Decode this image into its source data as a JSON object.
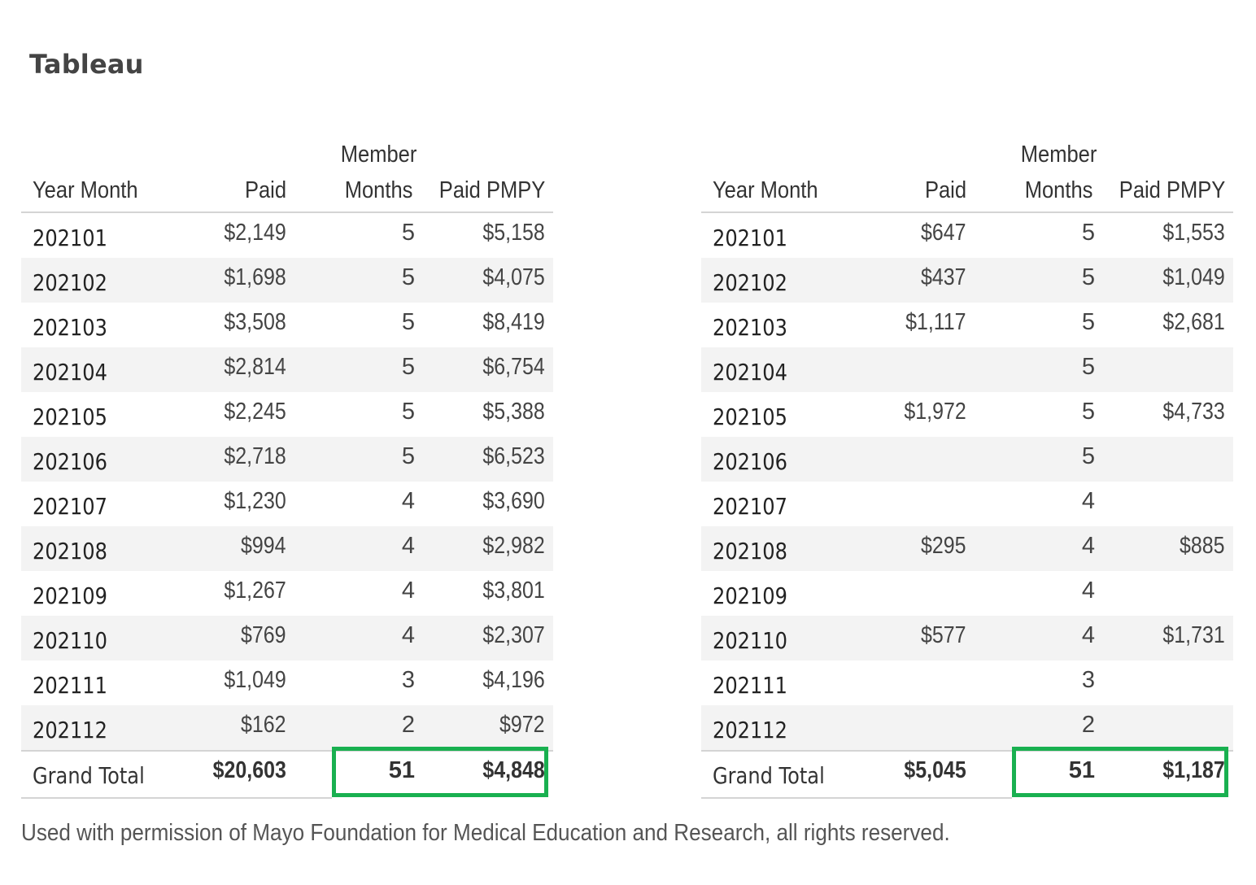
{
  "title": "Tableau",
  "columns": {
    "year_month": "Year Month",
    "paid": "Paid",
    "member_months_line1": "Member",
    "member_months_line2": "Months",
    "paid_pmpy": "Paid PMPY"
  },
  "tables": [
    {
      "rows": [
        {
          "ym": "202101",
          "paid": "$2,149",
          "mm": "5",
          "pmpy": "$5,158"
        },
        {
          "ym": "202102",
          "paid": "$1,698",
          "mm": "5",
          "pmpy": "$4,075"
        },
        {
          "ym": "202103",
          "paid": "$3,508",
          "mm": "5",
          "pmpy": "$8,419"
        },
        {
          "ym": "202104",
          "paid": "$2,814",
          "mm": "5",
          "pmpy": "$6,754"
        },
        {
          "ym": "202105",
          "paid": "$2,245",
          "mm": "5",
          "pmpy": "$5,388"
        },
        {
          "ym": "202106",
          "paid": "$2,718",
          "mm": "5",
          "pmpy": "$6,523"
        },
        {
          "ym": "202107",
          "paid": "$1,230",
          "mm": "4",
          "pmpy": "$3,690"
        },
        {
          "ym": "202108",
          "paid": "$994",
          "mm": "4",
          "pmpy": "$2,982"
        },
        {
          "ym": "202109",
          "paid": "$1,267",
          "mm": "4",
          "pmpy": "$3,801"
        },
        {
          "ym": "202110",
          "paid": "$769",
          "mm": "4",
          "pmpy": "$2,307"
        },
        {
          "ym": "202111",
          "paid": "$1,049",
          "mm": "3",
          "pmpy": "$4,196"
        },
        {
          "ym": "202112",
          "paid": "$162",
          "mm": "2",
          "pmpy": "$972"
        }
      ],
      "total": {
        "label": "Grand Total",
        "paid": "$20,603",
        "mm": "51",
        "pmpy": "$4,848"
      }
    },
    {
      "rows": [
        {
          "ym": "202101",
          "paid": "$647",
          "mm": "5",
          "pmpy": "$1,553"
        },
        {
          "ym": "202102",
          "paid": "$437",
          "mm": "5",
          "pmpy": "$1,049"
        },
        {
          "ym": "202103",
          "paid": "$1,117",
          "mm": "5",
          "pmpy": "$2,681"
        },
        {
          "ym": "202104",
          "paid": "",
          "mm": "5",
          "pmpy": ""
        },
        {
          "ym": "202105",
          "paid": "$1,972",
          "mm": "5",
          "pmpy": "$4,733"
        },
        {
          "ym": "202106",
          "paid": "",
          "mm": "5",
          "pmpy": ""
        },
        {
          "ym": "202107",
          "paid": "",
          "mm": "4",
          "pmpy": ""
        },
        {
          "ym": "202108",
          "paid": "$295",
          "mm": "4",
          "pmpy": "$885"
        },
        {
          "ym": "202109",
          "paid": "",
          "mm": "4",
          "pmpy": ""
        },
        {
          "ym": "202110",
          "paid": "$577",
          "mm": "4",
          "pmpy": "$1,731"
        },
        {
          "ym": "202111",
          "paid": "",
          "mm": "3",
          "pmpy": ""
        },
        {
          "ym": "202112",
          "paid": "",
          "mm": "2",
          "pmpy": ""
        }
      ],
      "total": {
        "label": "Grand Total",
        "paid": "$5,045",
        "mm": "51",
        "pmpy": "$1,187"
      }
    }
  ],
  "colors": {
    "highlight_border": "#19b050",
    "row_stripe": "#f3f3f3",
    "rule": "#d4d4d4"
  },
  "footer": "Used with permission of Mayo Foundation for Medical Education and Research, all rights reserved."
}
